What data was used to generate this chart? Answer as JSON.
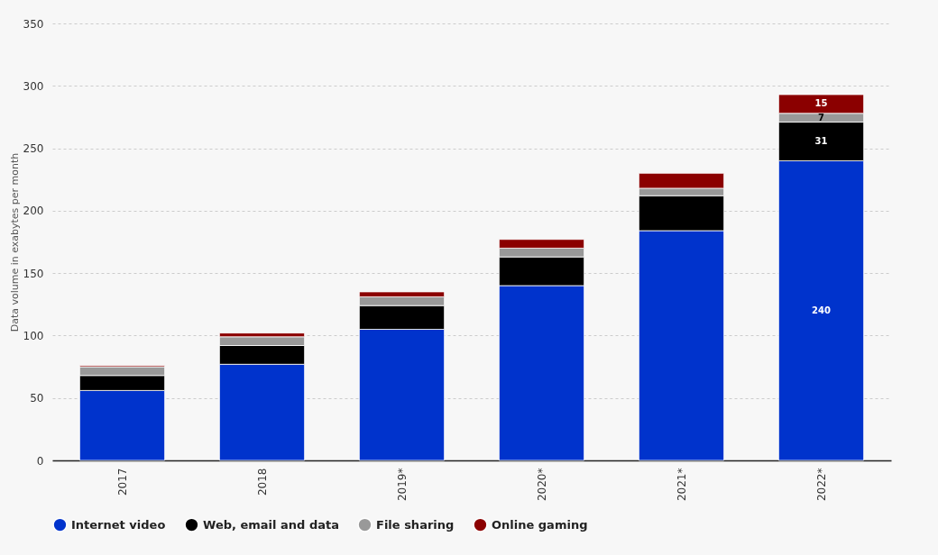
{
  "chart_data": {
    "type": "bar",
    "stacked": true,
    "ylabel": "Data volume in exabytes per month",
    "categories": [
      "2017",
      "2018",
      "2019*",
      "2020*",
      "2021*",
      "2022*"
    ],
    "series": [
      {
        "name": "Internet video",
        "color": "#0033cc",
        "values": [
          56,
          77,
          105,
          140,
          184,
          240
        ],
        "value_labels": [
          null,
          null,
          null,
          null,
          null,
          "240"
        ]
      },
      {
        "name": "Web, email and data",
        "color": "#000000",
        "values": [
          12,
          15,
          19,
          23,
          28,
          31
        ],
        "value_labels": [
          null,
          null,
          null,
          null,
          null,
          "31"
        ]
      },
      {
        "name": "File sharing",
        "color": "#999999",
        "values": [
          7,
          7,
          7,
          7,
          6,
          7
        ],
        "value_labels": [
          null,
          null,
          null,
          null,
          null,
          "7"
        ]
      },
      {
        "name": "Online gaming",
        "color": "#8b0000",
        "values": [
          1,
          3,
          4,
          7,
          12,
          15
        ],
        "value_labels": [
          null,
          null,
          null,
          null,
          null,
          "15"
        ]
      }
    ],
    "ylim": [
      0,
      350
    ],
    "yticks": [
      0,
      50,
      100,
      150,
      200,
      250,
      300,
      350
    ],
    "grid": "y",
    "legend": "bottom"
  }
}
